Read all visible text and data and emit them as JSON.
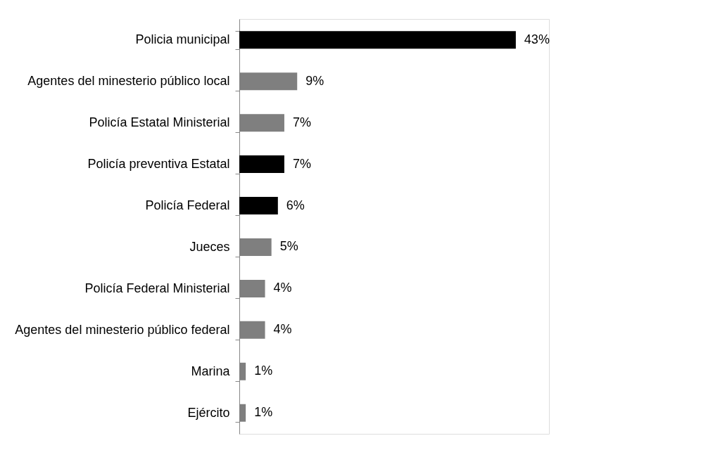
{
  "chart_data": {
    "type": "bar",
    "orientation": "horizontal",
    "categories": [
      "Policia municipal",
      "Agentes del minesterio público local",
      "Policía Estatal Ministerial",
      "Policía preventiva Estatal",
      "Policía Federal",
      "Jueces",
      "Policía Federal Ministerial",
      "Agentes del minesterio público federal",
      "Marina",
      "Ejército"
    ],
    "values": [
      43,
      9,
      7,
      7,
      6,
      5,
      4,
      4,
      1,
      1
    ],
    "colors": [
      "#000000",
      "#7f7f7f",
      "#7f7f7f",
      "#000000",
      "#000000",
      "#7f7f7f",
      "#7f7f7f",
      "#7f7f7f",
      "#7f7f7f",
      "#7f7f7f"
    ],
    "value_labels": [
      "43%",
      "9%",
      "7%",
      "7%",
      "6%",
      "5%",
      "4%",
      "4%",
      "1%",
      "1%"
    ]
  }
}
